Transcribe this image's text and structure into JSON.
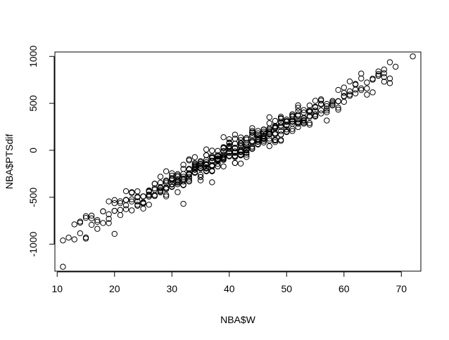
{
  "chart_data": {
    "type": "scatter",
    "title": "",
    "xlabel": "NBA$W",
    "ylabel": "NBA$PTSdif",
    "xlim": [
      9.6,
      73.4
    ],
    "ylim": [
      -1287,
      1047
    ],
    "xticks": [
      10,
      20,
      30,
      40,
      50,
      60,
      70
    ],
    "yticks": [
      -1000,
      -500,
      0,
      500,
      1000
    ],
    "grid": false,
    "legend": "none",
    "marker": "open-circle",
    "marker_color": "#000000",
    "background": "#ffffff",
    "slope": 30.5,
    "intercept": -1250,
    "highlight_points": [
      {
        "x": 11,
        "y": -1240
      },
      {
        "x": 11,
        "y": -960
      },
      {
        "x": 12,
        "y": -930
      },
      {
        "x": 15,
        "y": -940
      },
      {
        "x": 72,
        "y": 1000
      },
      {
        "x": 69,
        "y": 890
      },
      {
        "x": 67,
        "y": 860
      },
      {
        "x": 66,
        "y": 840
      },
      {
        "x": 32,
        "y": -570
      },
      {
        "x": 20,
        "y": -890
      },
      {
        "x": 37,
        "y": -340
      }
    ]
  }
}
